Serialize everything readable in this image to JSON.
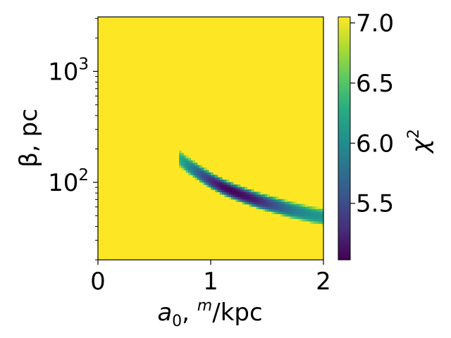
{
  "chart_data": {
    "type": "heatmap",
    "title": "",
    "xlabel_main": "a",
    "xlabel_sub": "0",
    "xlabel_rest": ", ",
    "xlabel_sup": "m",
    "xlabel_tail": "/kpc",
    "ylabel": "β, pc",
    "colorbar_label": "χ",
    "colorbar_label_sup": "2",
    "colormap": "viridis",
    "x_scale": "linear",
    "y_scale": "log",
    "xlim": [
      0,
      2
    ],
    "ylim": [
      20,
      3100
    ],
    "colorbar_range": [
      5.03,
      7.05
    ],
    "x_ticks": [
      {
        "value": 0,
        "label": "0"
      },
      {
        "value": 1,
        "label": "1"
      },
      {
        "value": 2,
        "label": "2"
      }
    ],
    "y_ticks": [
      {
        "value": 100,
        "base": "10",
        "exp": "2"
      },
      {
        "value": 1000,
        "base": "10",
        "exp": "3"
      }
    ],
    "colorbar_ticks": [
      {
        "value": 5.5,
        "label": "5.5"
      },
      {
        "value": 6.0,
        "label": "6.0"
      },
      {
        "value": 6.5,
        "label": "6.5"
      },
      {
        "value": 7.0,
        "label": "7.0"
      }
    ],
    "background_value": 7.0,
    "valley": {
      "x": [
        0.72,
        0.8,
        0.9,
        1.0,
        1.1,
        1.2,
        1.3,
        1.4,
        1.5,
        1.6,
        1.7,
        1.8,
        1.9,
        2.0
      ],
      "y": [
        165,
        142,
        121,
        104,
        92,
        83,
        76,
        70,
        65,
        61,
        57,
        54,
        51,
        49
      ],
      "min_values": [
        6.3,
        6.0,
        5.6,
        5.3,
        5.1,
        5.05,
        5.1,
        5.2,
        5.4,
        5.6,
        5.8,
        5.95,
        6.05,
        6.1
      ]
    }
  }
}
